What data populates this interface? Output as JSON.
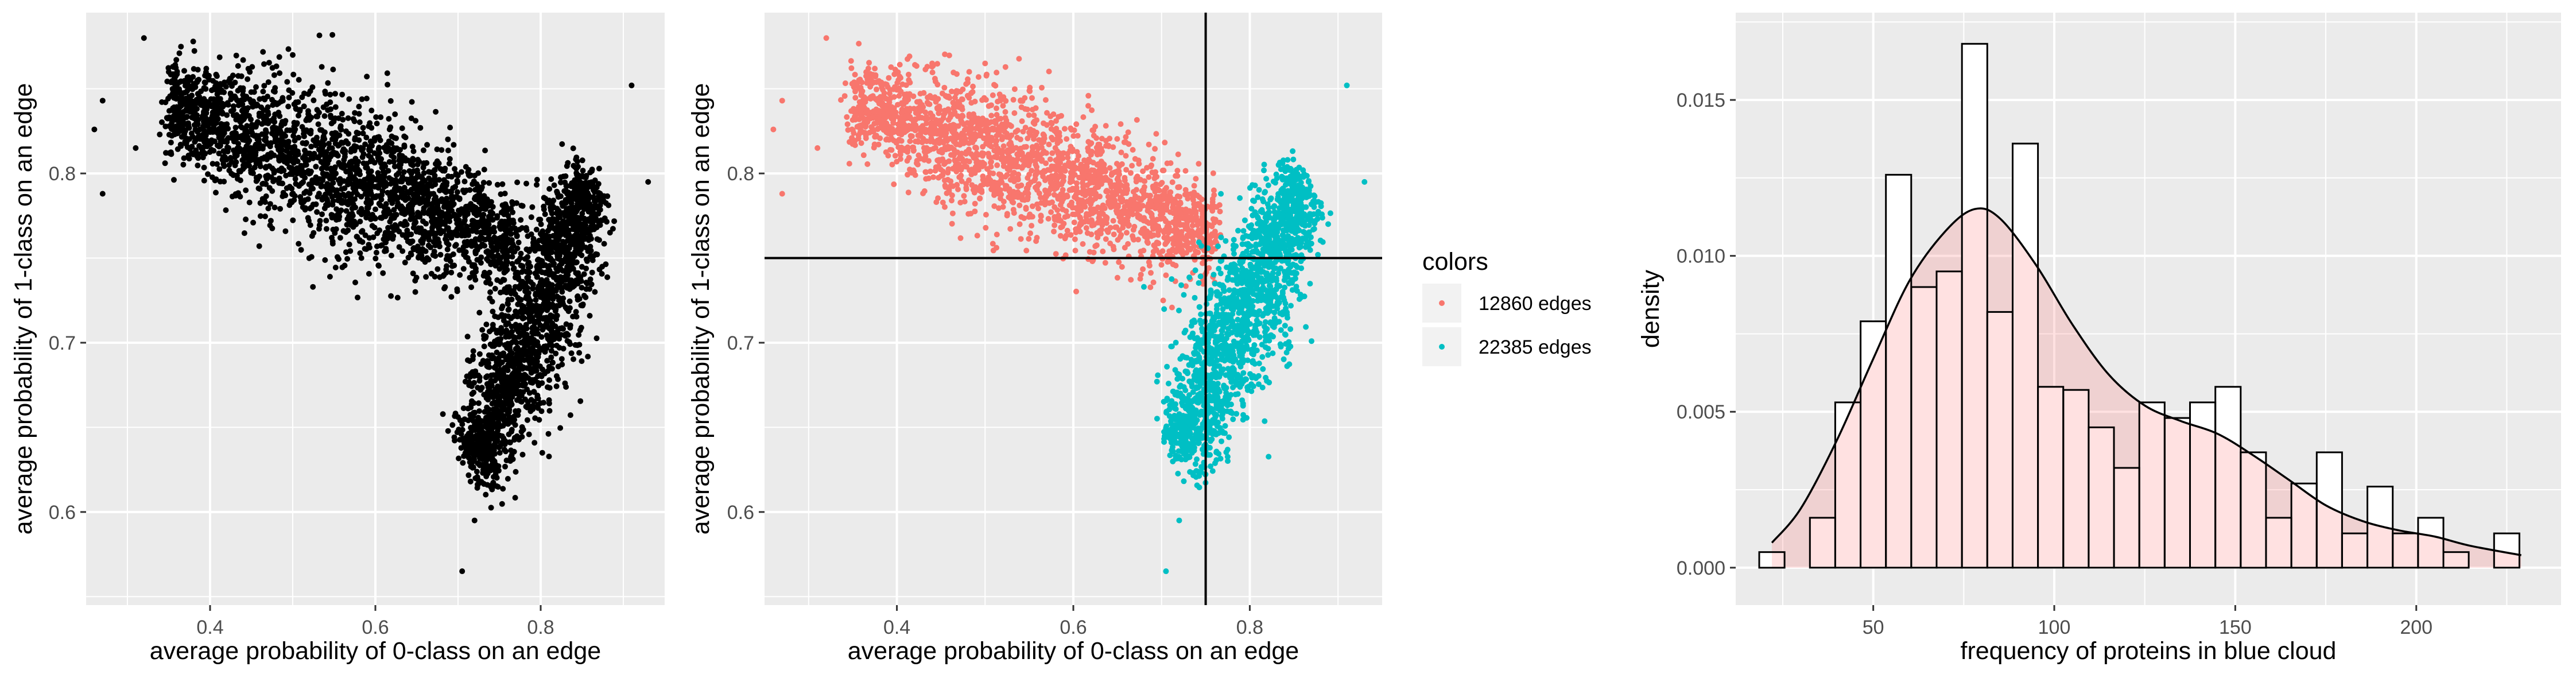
{
  "chart_data": [
    {
      "type": "scatter",
      "xlabel": "average probability of 0-class on an edge",
      "ylabel": "average probability of 1-class on an edge",
      "xlim": [
        0.25,
        0.95
      ],
      "ylim": [
        0.545,
        0.895
      ],
      "x_ticks": [
        0.4,
        0.6,
        0.8
      ],
      "y_ticks": [
        0.6,
        0.7,
        0.8
      ],
      "grid": true,
      "point_color": "#000000",
      "clusters": [
        {
          "along_start": [
            0.36,
            0.84
          ],
          "along_end": [
            0.76,
            0.76
          ],
          "spread": 0.022,
          "count": 2400
        },
        {
          "along_start": [
            0.72,
            0.63
          ],
          "along_end": [
            0.86,
            0.79
          ],
          "spread": 0.022,
          "count": 1800
        }
      ],
      "points": [
        [
          0.27,
          0.843
        ],
        [
          0.26,
          0.826
        ],
        [
          0.27,
          0.788
        ],
        [
          0.31,
          0.815
        ],
        [
          0.32,
          0.88
        ],
        [
          0.91,
          0.852
        ],
        [
          0.93,
          0.795
        ],
        [
          0.705,
          0.565
        ],
        [
          0.72,
          0.595
        ],
        [
          0.44,
          0.867
        ],
        [
          0.5,
          0.87
        ],
        [
          0.35,
          0.86
        ]
      ]
    },
    {
      "type": "scatter",
      "xlabel": "average probability of 0-class on an edge",
      "ylabel": "average probability of 1-class on an edge",
      "xlim": [
        0.25,
        0.95
      ],
      "ylim": [
        0.545,
        0.895
      ],
      "x_ticks": [
        0.4,
        0.6,
        0.8
      ],
      "y_ticks": [
        0.6,
        0.7,
        0.8
      ],
      "grid": true,
      "reference_lines": {
        "x": 0.75,
        "y": 0.75
      },
      "legend": {
        "title": "colors",
        "placement": "right",
        "entries": [
          {
            "label": "12860 edges",
            "color": "#F8766D"
          },
          {
            "label": "22385 edges",
            "color": "#00BFC4"
          }
        ]
      },
      "series": [
        {
          "color": "#F8766D",
          "along_start": [
            0.36,
            0.84
          ],
          "along_end": [
            0.75,
            0.765
          ],
          "spread": 0.02,
          "count": 2200,
          "points": [
            [
              0.27,
              0.843
            ],
            [
              0.26,
              0.826
            ],
            [
              0.27,
              0.788
            ],
            [
              0.31,
              0.815
            ],
            [
              0.32,
              0.88
            ],
            [
              0.5,
              0.865
            ],
            [
              0.44,
              0.865
            ]
          ]
        },
        {
          "color": "#00BFC4",
          "along_start": [
            0.72,
            0.64
          ],
          "along_end": [
            0.86,
            0.79
          ],
          "spread": 0.022,
          "count": 1800,
          "points": [
            [
              0.91,
              0.852
            ],
            [
              0.93,
              0.795
            ],
            [
              0.705,
              0.565
            ],
            [
              0.72,
              0.595
            ],
            [
              0.68,
              0.733
            ]
          ]
        }
      ]
    },
    {
      "type": "histogram",
      "xlabel": "frequency of proteins in blue cloud",
      "ylabel": "density",
      "xlim": [
        12,
        240
      ],
      "ylim": [
        -0.0012,
        0.0178
      ],
      "x_ticks": [
        50,
        100,
        150,
        200
      ],
      "y_ticks": [
        0.0,
        0.005,
        0.01,
        0.015
      ],
      "y_tick_labels": [
        "0.000",
        "0.005",
        "0.010",
        "0.015"
      ],
      "grid": true,
      "bin_start": 18.5,
      "bin_width": 7.0,
      "densities": [
        0.0005,
        0.0,
        0.0016,
        0.0053,
        0.0079,
        0.0126,
        0.009,
        0.0095,
        0.0168,
        0.0082,
        0.0136,
        0.0058,
        0.0057,
        0.0045,
        0.0032,
        0.0053,
        0.0048,
        0.0053,
        0.0058,
        0.0037,
        0.0016,
        0.0027,
        0.0037,
        0.0011,
        0.0026,
        0.0011,
        0.0016,
        0.0005,
        0.0,
        0.0011
      ],
      "bar_fill": "#FFFFFF",
      "bar_stroke": "#000000",
      "density_curve": {
        "fill": "#FF6A6A",
        "fill_opacity": 0.2,
        "x": [
          22,
          30,
          40,
          50,
          60,
          70,
          78,
          85,
          95,
          105,
          115,
          125,
          135,
          145,
          155,
          165,
          175,
          185,
          195,
          205,
          215,
          229
        ],
        "y": [
          0.0008,
          0.0019,
          0.0041,
          0.0067,
          0.0092,
          0.0108,
          0.0115,
          0.0112,
          0.0097,
          0.0078,
          0.0062,
          0.0052,
          0.0047,
          0.0043,
          0.0036,
          0.0028,
          0.002,
          0.0015,
          0.0012,
          0.001,
          0.0007,
          0.0004
        ]
      }
    }
  ]
}
